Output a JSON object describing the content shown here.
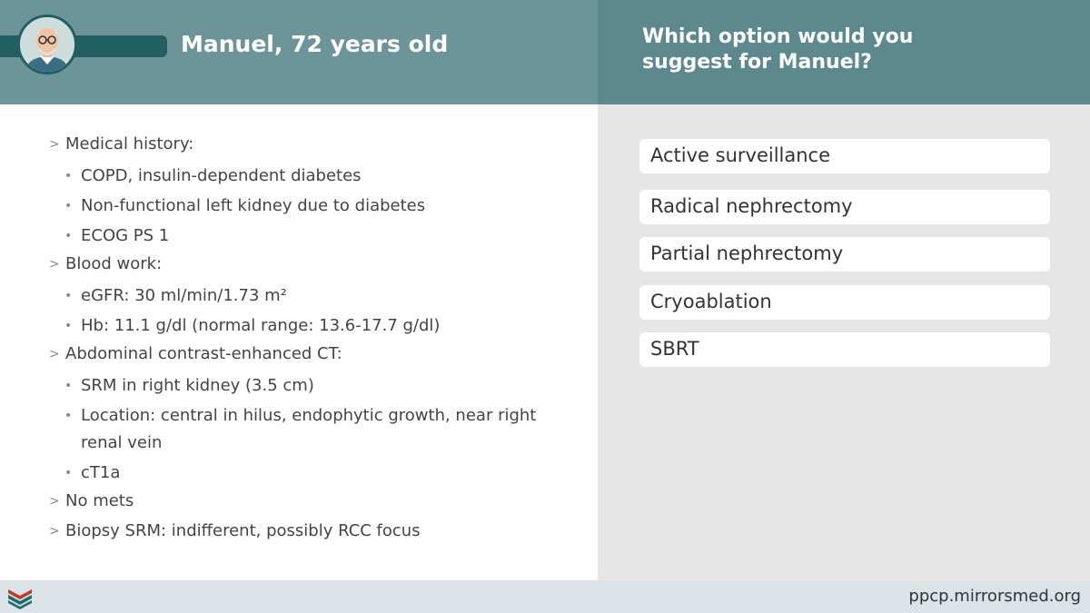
{
  "header": {
    "patient_title": "Manuel, 72 years old",
    "question_line1": "Which option would you",
    "question_line2": "suggest for Manuel?"
  },
  "case": {
    "items": [
      {
        "level": 1,
        "text": "Medical history:"
      },
      {
        "level": 2,
        "text": "COPD, insulin-dependent diabetes"
      },
      {
        "level": 2,
        "text": "Non-functional left kidney due to diabetes"
      },
      {
        "level": 2,
        "text": "ECOG PS 1"
      },
      {
        "level": 1,
        "text": "Blood work:"
      },
      {
        "level": 2,
        "text": "eGFR: 30 ml/min/1.73 m²"
      },
      {
        "level": 2,
        "text": "Hb: 11.1 g/dl (normal range: 13.6-17.7 g/dl)"
      },
      {
        "level": 1,
        "text": "Abdominal contrast-enhanced CT:"
      },
      {
        "level": 2,
        "text": "SRM in right kidney (3.5 cm)"
      },
      {
        "level": 2,
        "text": "Location: central in hilus, endophytic growth, near right renal vein"
      },
      {
        "level": 2,
        "text": "cT1a"
      },
      {
        "level": 1,
        "text": "No mets"
      },
      {
        "level": 1,
        "text": "Biopsy SRM: indifferent, possibly RCC focus"
      }
    ],
    "level1_marker": ">",
    "level2_marker": "•"
  },
  "options": [
    {
      "label": "Active surveillance"
    },
    {
      "label": "Radical nephrectomy"
    },
    {
      "label": "Partial nephrectomy"
    },
    {
      "label": "Cryoablation"
    },
    {
      "label": "SBRT"
    }
  ],
  "footer": {
    "url": "ppcp.mirrorsmed.org",
    "logo_icon": "book-logo-icon"
  },
  "colors": {
    "header_left": "#6c9499",
    "header_right": "#5d888d",
    "title_bar": "#225f63",
    "right_panel": "#e6e6e6",
    "footer": "#dbe3e6",
    "logo_red": "#c0392b",
    "logo_teal": "#1f6b70"
  }
}
